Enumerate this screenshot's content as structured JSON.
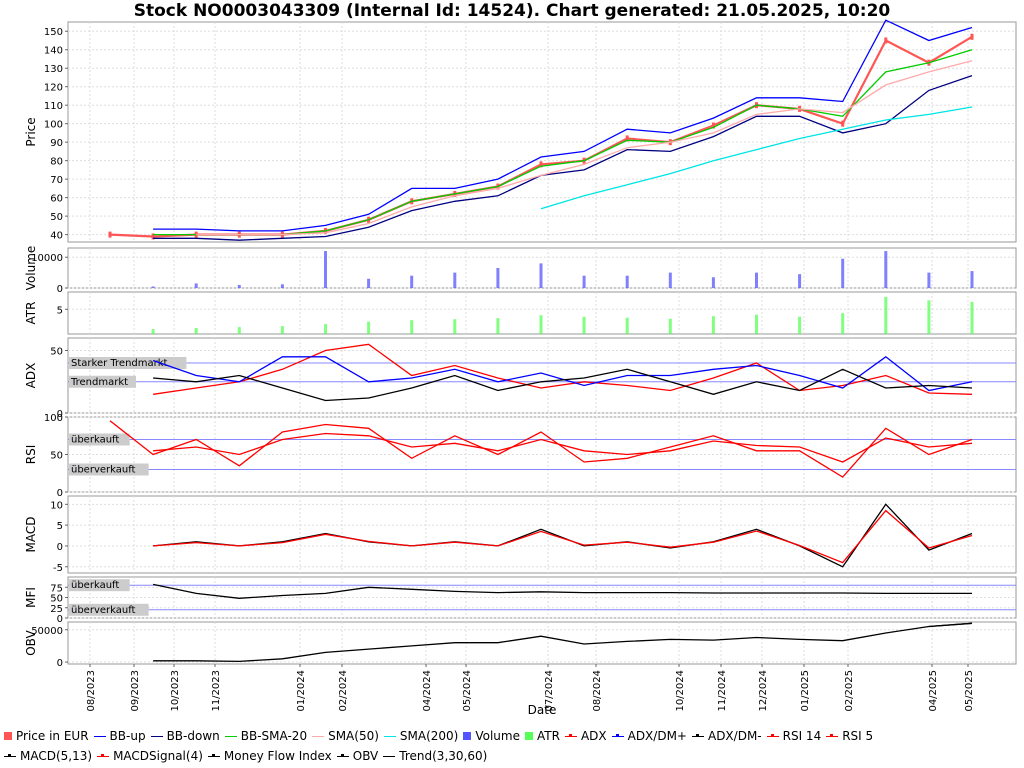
{
  "title": "Stock NO0003043309 (Internal Id: 14524). Chart generated: 21.05.2025, 10:20",
  "x_axis_label": "Date",
  "date_ticks": [
    "08/2023",
    "09/2023",
    "10/2023",
    "11/2023",
    "01/2024",
    "02/2024",
    "04/2024",
    "05/2024",
    "07/2024",
    "08/2024",
    "10/2024",
    "11/2024",
    "12/2024",
    "01/2025",
    "02/2025",
    "04/2025",
    "05/2025"
  ],
  "colors": {
    "price": "#ff5555",
    "bb_up": "#0000ff",
    "bb_down": "#000080",
    "bb_sma20": "#00cc00",
    "sma50": "#ffaaaa",
    "sma200": "#00e5e5",
    "volume": "#5555ff",
    "atr": "#55ff55",
    "adx": "#ff0000",
    "adx_dm_plus": "#0000ff",
    "adx_dm_minus": "#000000",
    "rsi14": "#ff0000",
    "rsi5": "#ff0000",
    "macd": "#000000",
    "macd_signal": "#ff0000",
    "mfi": "#000000",
    "obv": "#000000",
    "trend": "#000000",
    "reference_line": "#8888ff",
    "grid": "#dddddd"
  },
  "legend": [
    {
      "label": "Price in EUR",
      "style": "box",
      "color": "#ff5555"
    },
    {
      "label": "BB-up",
      "style": "line",
      "color": "#0000ff"
    },
    {
      "label": "BB-down",
      "style": "line",
      "color": "#000080"
    },
    {
      "label": "BB-SMA-20",
      "style": "line",
      "color": "#00cc00"
    },
    {
      "label": "SMA(50)",
      "style": "line",
      "color": "#ffaaaa"
    },
    {
      "label": "SMA(200)",
      "style": "line",
      "color": "#00e5e5"
    },
    {
      "label": "Volume",
      "style": "box",
      "color": "#5555ff"
    },
    {
      "label": "ATR",
      "style": "box",
      "color": "#55ff55"
    },
    {
      "label": "ADX",
      "style": "dotline",
      "color": "#ff0000"
    },
    {
      "label": "ADX/DM+",
      "style": "dotline",
      "color": "#0000ff"
    },
    {
      "label": "ADX/DM-",
      "style": "dotline",
      "color": "#000000"
    },
    {
      "label": "RSI 14",
      "style": "dotline",
      "color": "#ff0000"
    },
    {
      "label": "RSI 5",
      "style": "dotline",
      "color": "#ff0000"
    },
    {
      "label": "MACD(5,13)",
      "style": "dotline",
      "color": "#000000"
    },
    {
      "label": "MACDSignal(4)",
      "style": "dotline",
      "color": "#ff0000"
    },
    {
      "label": "Money Flow Index",
      "style": "dotline",
      "color": "#000000"
    },
    {
      "label": "OBV",
      "style": "dotline",
      "color": "#000000"
    },
    {
      "label": "Trend(3,30,60)",
      "style": "line",
      "color": "#000000"
    }
  ],
  "chart_data": [
    {
      "type": "line",
      "id": "price",
      "ylabel": "Price",
      "yticks": [
        40,
        50,
        60,
        70,
        80,
        90,
        100,
        110,
        120,
        130,
        140,
        150
      ],
      "ylim": [
        36,
        155
      ],
      "x_index": [
        0,
        5,
        10,
        15,
        20,
        25,
        30,
        35,
        40,
        45,
        50,
        55,
        60,
        65,
        70,
        75,
        80,
        85,
        90,
        95,
        100
      ],
      "series": [
        {
          "name": "Price in EUR",
          "values": [
            40,
            39,
            40,
            40,
            40,
            42,
            48,
            58,
            62,
            66,
            78,
            80,
            92,
            90,
            99,
            110,
            108,
            100,
            145,
            133,
            147
          ]
        },
        {
          "name": "BB-up",
          "values": [
            null,
            43,
            43,
            42,
            42,
            45,
            51,
            65,
            65,
            70,
            82,
            85,
            97,
            95,
            103,
            114,
            114,
            112,
            156,
            145,
            152
          ]
        },
        {
          "name": "BB-down",
          "values": [
            null,
            38,
            38,
            37,
            38,
            39,
            44,
            53,
            58,
            61,
            72,
            75,
            86,
            85,
            93,
            104,
            104,
            95,
            100,
            118,
            126
          ]
        },
        {
          "name": "BB-SMA-20",
          "values": [
            null,
            40,
            40,
            40,
            40,
            42,
            48,
            58,
            62,
            66,
            77,
            80,
            91,
            90,
            98,
            110,
            108,
            104,
            128,
            133,
            140
          ]
        },
        {
          "name": "SMA(50)",
          "values": [
            null,
            null,
            40,
            40,
            40,
            41,
            46,
            55,
            61,
            65,
            72,
            78,
            87,
            90,
            95,
            105,
            108,
            106,
            121,
            128,
            134
          ]
        },
        {
          "name": "SMA(200)",
          "values": [
            null,
            null,
            null,
            null,
            null,
            null,
            null,
            null,
            null,
            null,
            54,
            61,
            67,
            73,
            80,
            86,
            92,
            97,
            102,
            105,
            109
          ]
        }
      ]
    },
    {
      "type": "bar",
      "id": "volume",
      "ylabel": "Volume",
      "yticks": [
        0,
        10000
      ],
      "ylim": [
        0,
        13000
      ],
      "x_index": [
        0,
        5,
        10,
        15,
        20,
        25,
        30,
        35,
        40,
        45,
        50,
        55,
        60,
        65,
        70,
        75,
        80,
        85,
        90,
        95,
        100
      ],
      "series": [
        {
          "name": "Volume",
          "values": [
            0,
            500,
            1500,
            1000,
            1200,
            12000,
            3000,
            4000,
            5000,
            6500,
            8000,
            4000,
            4000,
            5000,
            3500,
            5000,
            4500,
            9500,
            12000,
            5000,
            5500
          ]
        }
      ]
    },
    {
      "type": "bar",
      "id": "atr",
      "ylabel": "ATR",
      "yticks": [
        5
      ],
      "ylim": [
        0,
        8.5
      ],
      "x_index": [
        0,
        5,
        10,
        15,
        20,
        25,
        30,
        35,
        40,
        45,
        50,
        55,
        60,
        65,
        70,
        75,
        80,
        85,
        90,
        95,
        100
      ],
      "series": [
        {
          "name": "ATR",
          "values": [
            null,
            1,
            1.2,
            1.4,
            1.6,
            2,
            2.5,
            2.8,
            3,
            3.2,
            3.8,
            3.5,
            3.3,
            3.1,
            3.6,
            3.9,
            3.5,
            4.2,
            7.5,
            6.8,
            6.5
          ]
        }
      ]
    },
    {
      "type": "line",
      "id": "adx",
      "ylabel": "ADX",
      "yticks": [
        0,
        50
      ],
      "ylim": [
        0,
        60
      ],
      "reference_lines": [
        {
          "label": "Starker Trendmarkt",
          "value": 40
        },
        {
          "label": "Trendmarkt",
          "value": 25
        }
      ],
      "x_index": [
        0,
        5,
        10,
        15,
        20,
        25,
        30,
        35,
        40,
        45,
        50,
        55,
        60,
        65,
        70,
        75,
        80,
        85,
        90,
        95,
        100
      ],
      "series": [
        {
          "name": "ADX",
          "values": [
            null,
            15,
            20,
            25,
            35,
            50,
            55,
            30,
            38,
            28,
            20,
            25,
            22,
            18,
            28,
            40,
            18,
            22,
            30,
            16,
            15
          ]
        },
        {
          "name": "ADX/DM+",
          "values": [
            null,
            42,
            30,
            25,
            45,
            45,
            25,
            28,
            35,
            25,
            32,
            22,
            30,
            30,
            35,
            38,
            30,
            20,
            45,
            18,
            25
          ]
        },
        {
          "name": "ADX/DM-",
          "values": [
            null,
            28,
            25,
            30,
            20,
            10,
            12,
            20,
            30,
            18,
            25,
            28,
            35,
            25,
            15,
            25,
            18,
            35,
            20,
            22,
            20
          ]
        }
      ]
    },
    {
      "type": "line",
      "id": "rsi",
      "ylabel": "RSI",
      "yticks": [
        0,
        50,
        100
      ],
      "ylim": [
        0,
        100
      ],
      "reference_lines": [
        {
          "label": "überkauft",
          "value": 70
        },
        {
          "label": "überverkauft",
          "value": 30
        }
      ],
      "x_index": [
        0,
        5,
        10,
        15,
        20,
        25,
        30,
        35,
        40,
        45,
        50,
        55,
        60,
        65,
        70,
        75,
        80,
        85,
        90,
        95,
        100
      ],
      "series": [
        {
          "name": "RSI 14",
          "values": [
            null,
            55,
            60,
            50,
            70,
            78,
            75,
            60,
            65,
            55,
            70,
            55,
            50,
            55,
            68,
            62,
            60,
            40,
            72,
            60,
            65
          ]
        },
        {
          "name": "RSI 5",
          "values": [
            95,
            50,
            70,
            35,
            80,
            90,
            85,
            45,
            75,
            50,
            80,
            40,
            45,
            60,
            75,
            55,
            55,
            20,
            85,
            50,
            70
          ]
        }
      ]
    },
    {
      "type": "line",
      "id": "macd",
      "ylabel": "MACD",
      "yticks": [
        -5,
        0,
        5,
        10
      ],
      "ylim": [
        -6.5,
        12
      ],
      "x_index": [
        0,
        5,
        10,
        15,
        20,
        25,
        30,
        35,
        40,
        45,
        50,
        55,
        60,
        65,
        70,
        75,
        80,
        85,
        90,
        95,
        100
      ],
      "series": [
        {
          "name": "MACD(5,13)",
          "values": [
            null,
            0,
            1,
            0,
            1,
            3,
            1,
            0,
            1,
            0,
            4,
            0,
            1,
            -0.5,
            1,
            4,
            0,
            -5,
            10,
            -1,
            3
          ]
        },
        {
          "name": "MACDSignal(4)",
          "values": [
            null,
            0,
            0.8,
            0,
            0.8,
            2.8,
            1.1,
            0,
            0.9,
            0,
            3.5,
            0.2,
            0.9,
            -0.3,
            0.9,
            3.6,
            0.1,
            -4,
            8.5,
            -0.5,
            2.5
          ]
        }
      ]
    },
    {
      "type": "line",
      "id": "mfi",
      "ylabel": "MFI",
      "yticks": [
        0,
        25,
        50,
        75
      ],
      "ylim": [
        0,
        100
      ],
      "reference_lines": [
        {
          "label": "überkauft",
          "value": 80
        },
        {
          "label": "überverkauft",
          "value": 20
        }
      ],
      "x_index": [
        0,
        5,
        10,
        15,
        20,
        25,
        30,
        35,
        40,
        45,
        50,
        55,
        60,
        65,
        70,
        75,
        80,
        85,
        90,
        95,
        100
      ],
      "series": [
        {
          "name": "Money Flow Index",
          "values": [
            null,
            82,
            60,
            48,
            55,
            60,
            75,
            70,
            65,
            62,
            64,
            62,
            62,
            62,
            61,
            61,
            61,
            61,
            60,
            60,
            60
          ]
        }
      ]
    },
    {
      "type": "line",
      "id": "obv",
      "ylabel": "OBV",
      "yticks": [
        0,
        50000
      ],
      "ylim": [
        -3000,
        62000
      ],
      "x_index": [
        0,
        5,
        10,
        15,
        20,
        25,
        30,
        35,
        40,
        45,
        50,
        55,
        60,
        65,
        70,
        75,
        80,
        85,
        90,
        95,
        100
      ],
      "series": [
        {
          "name": "OBV",
          "values": [
            null,
            2000,
            2000,
            1000,
            5000,
            15000,
            20000,
            25000,
            30000,
            30000,
            40000,
            28000,
            32000,
            35000,
            34000,
            38000,
            35000,
            33000,
            45000,
            55000,
            60000
          ]
        },
        {
          "name": "Trend(3,30,60)",
          "values": [
            null,
            null,
            null,
            null,
            null,
            null,
            null,
            null,
            null,
            null,
            null,
            null,
            null,
            null,
            null,
            null,
            null,
            null,
            null,
            55000,
            60000
          ]
        }
      ]
    }
  ]
}
